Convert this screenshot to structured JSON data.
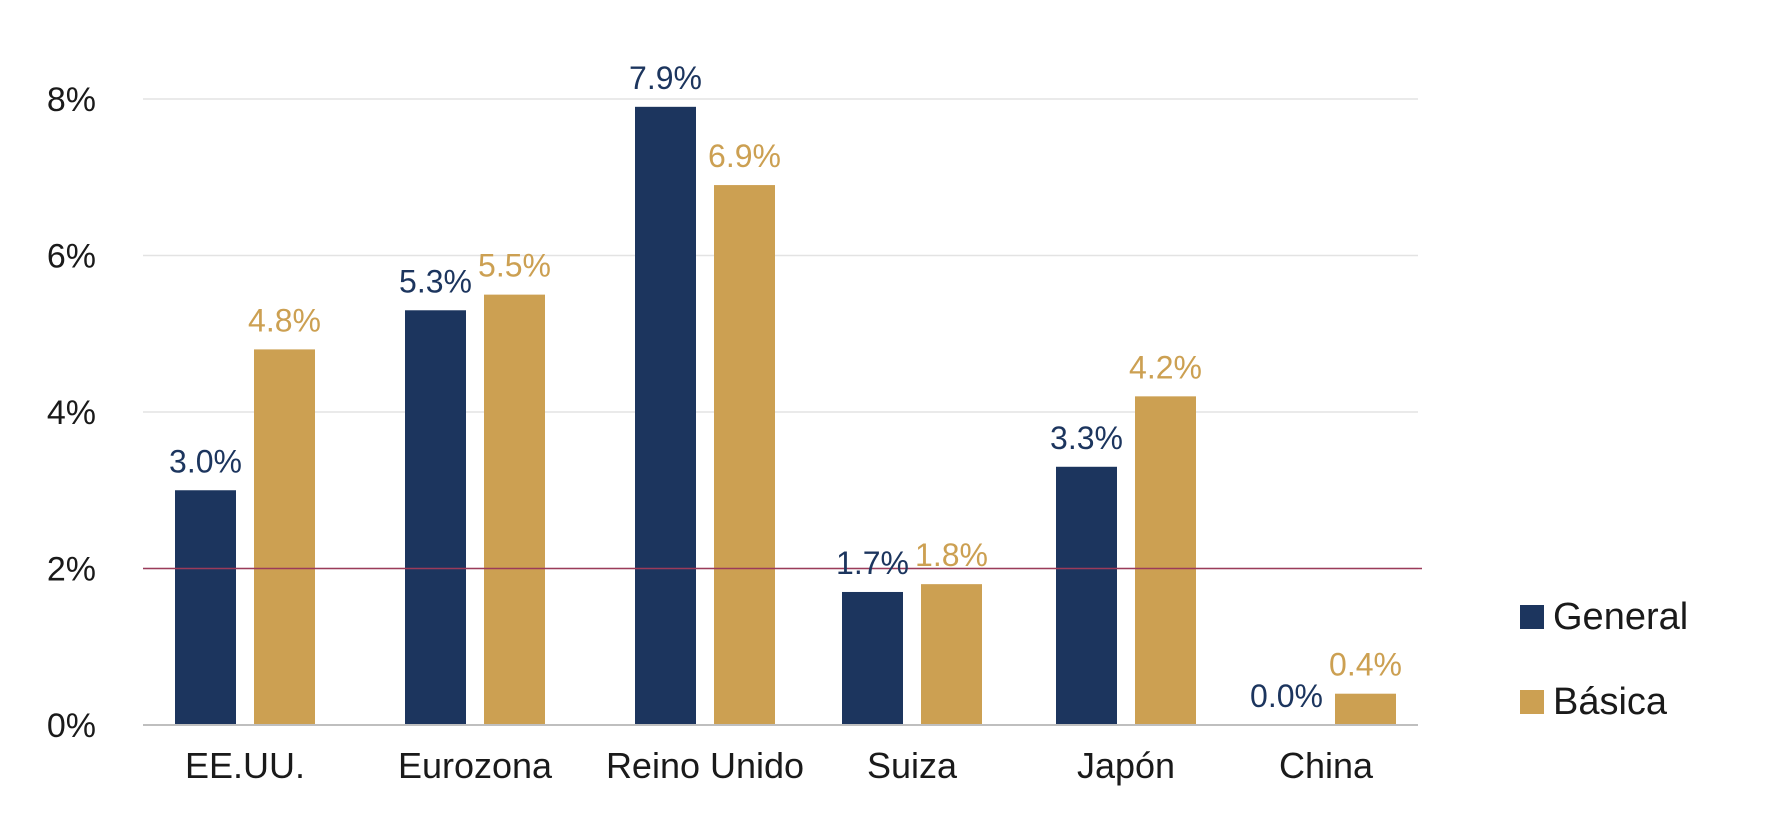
{
  "chart_data": {
    "type": "bar",
    "categories": [
      "EE.UU.",
      "Eurozona",
      "Reino Unido",
      "Suiza",
      "Japón",
      "China"
    ],
    "series": [
      {
        "name": "General",
        "color": "#1c355e",
        "values": [
          3.0,
          5.3,
          7.9,
          1.7,
          3.3,
          0.0
        ],
        "labels": [
          "3.0%",
          "5.3%",
          "7.9%",
          "1.7%",
          "3.3%",
          "0.0%"
        ]
      },
      {
        "name": "Básica",
        "color": "#cca052",
        "values": [
          4.8,
          5.5,
          6.9,
          1.8,
          4.2,
          0.4
        ],
        "labels": [
          "4.8%",
          "5.5%",
          "6.9%",
          "1.8%",
          "4.2%",
          "0.4%"
        ]
      }
    ],
    "y_ticks": [
      "0%",
      "2%",
      "4%",
      "6%",
      "8%"
    ],
    "ylim": [
      0,
      8
    ],
    "reference_line": {
      "value": 2,
      "color": "#9b3b5a"
    },
    "grid": true,
    "legend_position": "right"
  }
}
